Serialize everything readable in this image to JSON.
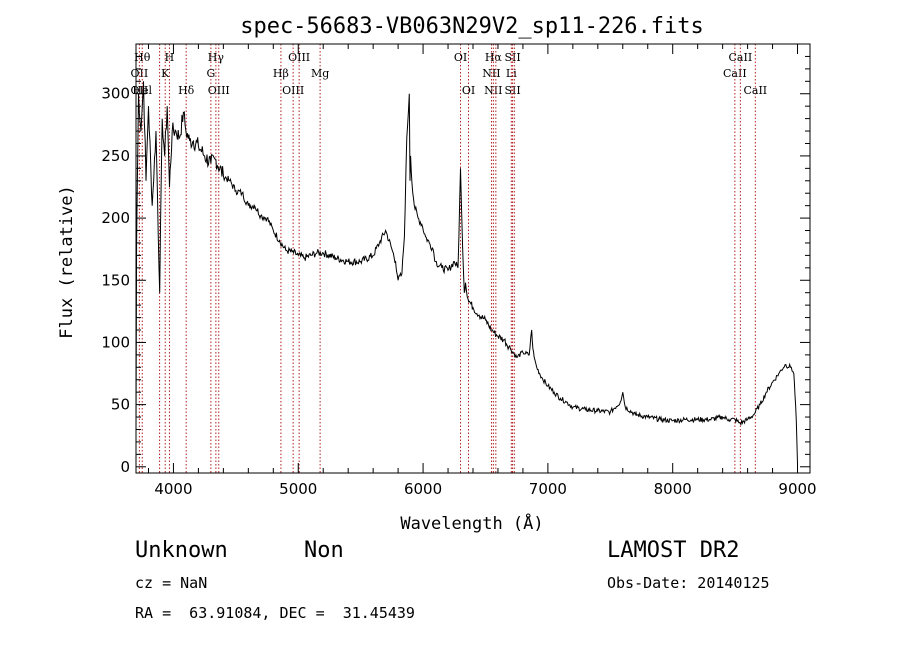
{
  "chart_data": {
    "type": "line",
    "title": "spec-56683-VB063N29V2_sp11-226.fits",
    "xlabel": "Wavelength (Å)",
    "ylabel": "Flux (relative)",
    "xlim": [
      3700,
      9100
    ],
    "ylim": [
      -5,
      340
    ],
    "xticks": [
      4000,
      5000,
      6000,
      7000,
      8000,
      9000
    ],
    "yticks": [
      0,
      50,
      100,
      150,
      200,
      250,
      300
    ],
    "xminor_step": 200,
    "yminor_step": 10,
    "grid": false,
    "line_color": "#000000",
    "marker_color": "#b22222",
    "series": [
      {
        "x": [
          3700,
          3705,
          3720,
          3740,
          3760,
          3780,
          3800,
          3830,
          3860,
          3890,
          3910,
          3930,
          3950,
          3968,
          3990,
          4020,
          4050,
          4080,
          4100,
          4130,
          4160,
          4200,
          4250,
          4300,
          4340,
          4400,
          4450,
          4500,
          4550,
          4600,
          4650,
          4700,
          4750,
          4800,
          4850,
          4900,
          4950,
          5000,
          5050,
          5100,
          5150,
          5200,
          5300,
          5400,
          5500,
          5600,
          5650,
          5700,
          5750,
          5780,
          5800,
          5830,
          5850,
          5870,
          5890,
          5895,
          5900,
          5910,
          5930,
          5960,
          5990,
          6020,
          6050,
          6080,
          6100,
          6150,
          6200,
          6250,
          6280,
          6300,
          6310,
          6330,
          6340,
          6360,
          6400,
          6450,
          6500,
          6550,
          6600,
          6650,
          6700,
          6750,
          6800,
          6850,
          6870,
          6880,
          6890,
          6910,
          6950,
          7000,
          7050,
          7100,
          7150,
          7200,
          7300,
          7400,
          7500,
          7580,
          7600,
          7620,
          7700,
          7800,
          7900,
          8000,
          8100,
          8200,
          8300,
          8400,
          8450,
          8500,
          8540,
          8600,
          8650,
          8700,
          8750,
          8800,
          8850,
          8900,
          8950,
          8970,
          8985,
          8995,
          9000
        ],
        "values": [
          30,
          180,
          300,
          270,
          310,
          230,
          290,
          210,
          270,
          140,
          280,
          250,
          290,
          225,
          270,
          270,
          265,
          285,
          270,
          262,
          262,
          258,
          250,
          244,
          247,
          234,
          230,
          222,
          220,
          210,
          210,
          202,
          200,
          190,
          182,
          174,
          173,
          170,
          168,
          170,
          172,
          172,
          168,
          165,
          165,
          170,
          180,
          190,
          175,
          165,
          150,
          155,
          185,
          265,
          300,
          230,
          250,
          230,
          210,
          200,
          195,
          185,
          180,
          175,
          165,
          160,
          158,
          165,
          160,
          240,
          200,
          140,
          148,
          135,
          128,
          122,
          118,
          110,
          105,
          102,
          95,
          88,
          92,
          90,
          110,
          95,
          88,
          80,
          72,
          65,
          60,
          55,
          52,
          48,
          46,
          45,
          44,
          52,
          60,
          48,
          42,
          40,
          38,
          37,
          38,
          38,
          38,
          40,
          38,
          38,
          35,
          38,
          42,
          50,
          60,
          68,
          75,
          82,
          80,
          75,
          50,
          20,
          2
        ]
      }
    ],
    "line_markers": [
      {
        "wl": 3727,
        "labels": [
          {
            "text": "OII",
            "row": 2
          },
          {
            "text": "OII",
            "row": 3
          }
        ]
      },
      {
        "wl": 3750,
        "labels": [
          {
            "text": "Hθ",
            "row": 1
          },
          {
            "text": "Hel",
            "row": 3
          }
        ]
      },
      {
        "wl": 3889,
        "labels": []
      },
      {
        "wl": 3934,
        "labels": [
          {
            "text": "K",
            "row": 2
          }
        ]
      },
      {
        "wl": 3968,
        "labels": [
          {
            "text": "H",
            "row": 1
          }
        ]
      },
      {
        "wl": 4102,
        "labels": [
          {
            "text": "Hδ",
            "row": 3
          }
        ]
      },
      {
        "wl": 4300,
        "labels": [
          {
            "text": "G",
            "row": 2
          }
        ]
      },
      {
        "wl": 4340,
        "labels": [
          {
            "text": "Hγ",
            "row": 1
          }
        ]
      },
      {
        "wl": 4363,
        "labels": [
          {
            "text": "OIII",
            "row": 3
          }
        ]
      },
      {
        "wl": 4861,
        "labels": [
          {
            "text": "Hβ",
            "row": 2
          }
        ]
      },
      {
        "wl": 4959,
        "labels": [
          {
            "text": "OIII",
            "row": 3
          }
        ]
      },
      {
        "wl": 5007,
        "labels": [
          {
            "text": "OIII",
            "row": 1
          }
        ]
      },
      {
        "wl": 5175,
        "labels": [
          {
            "text": "Mg",
            "row": 2
          }
        ]
      },
      {
        "wl": 6300,
        "labels": [
          {
            "text": "OI",
            "row": 1
          }
        ]
      },
      {
        "wl": 6364,
        "labels": [
          {
            "text": "OI",
            "row": 3
          }
        ]
      },
      {
        "wl": 6548,
        "labels": [
          {
            "text": "NII",
            "row": 2
          }
        ]
      },
      {
        "wl": 6563,
        "labels": [
          {
            "text": "Hα",
            "row": 1
          },
          {
            "text": "NII",
            "row": 3
          }
        ]
      },
      {
        "wl": 6583,
        "labels": []
      },
      {
        "wl": 6707,
        "labels": [
          {
            "text": "Li",
            "row": 2
          }
        ]
      },
      {
        "wl": 6717,
        "labels": [
          {
            "text": "SII",
            "row": 1
          },
          {
            "text": "SII",
            "row": 3
          }
        ]
      },
      {
        "wl": 6731,
        "labels": []
      },
      {
        "wl": 8498,
        "labels": [
          {
            "text": "CaII",
            "row": 2
          }
        ]
      },
      {
        "wl": 8542,
        "labels": [
          {
            "text": "CaII",
            "row": 1
          }
        ]
      },
      {
        "wl": 8662,
        "labels": [
          {
            "text": "CaII",
            "row": 3
          }
        ]
      }
    ]
  },
  "info": {
    "class": "Unknown",
    "subclass": "Non",
    "survey": "LAMOST DR2",
    "cz": "cz = NaN",
    "obs_date": "Obs-Date: 20140125",
    "coords": "RA =  63.91084, DEC =  31.45439"
  }
}
